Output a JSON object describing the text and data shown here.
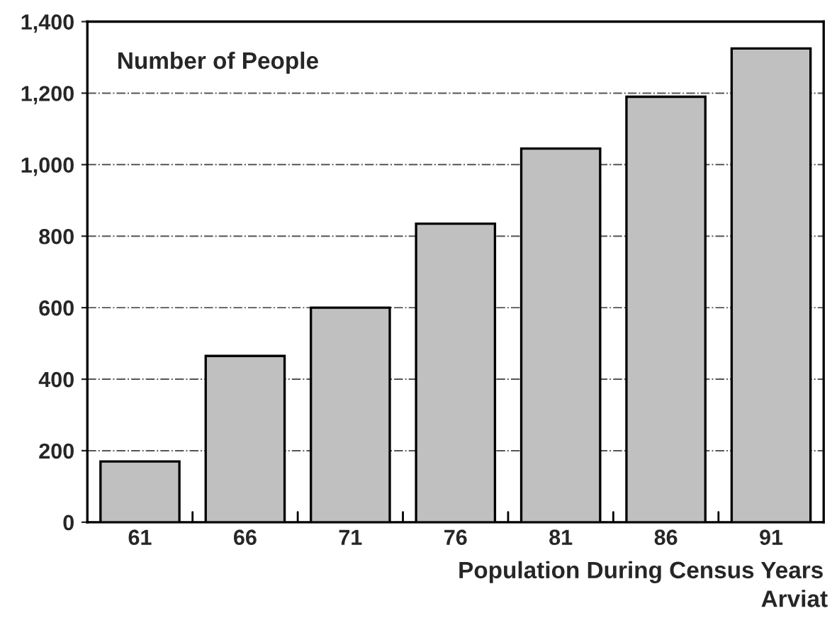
{
  "chart_data": {
    "type": "bar",
    "ylabel": "Number of People",
    "xlabel": "Population During Census Years",
    "annotations": [
      "Arviat"
    ],
    "categories": [
      "61",
      "66",
      "71",
      "76",
      "81",
      "86",
      "91"
    ],
    "values": [
      170,
      465,
      600,
      835,
      1045,
      1190,
      1325
    ],
    "color": "#c0c0c0",
    "ylim": [
      0,
      1400
    ],
    "yticks": [
      0,
      200,
      400,
      600,
      800,
      {
        "value": 1000,
        "label": "1,000"
      },
      {
        "value": 1200,
        "label": "1,200"
      },
      {
        "value": 1400,
        "label": "1,400"
      }
    ],
    "grid": "y"
  }
}
